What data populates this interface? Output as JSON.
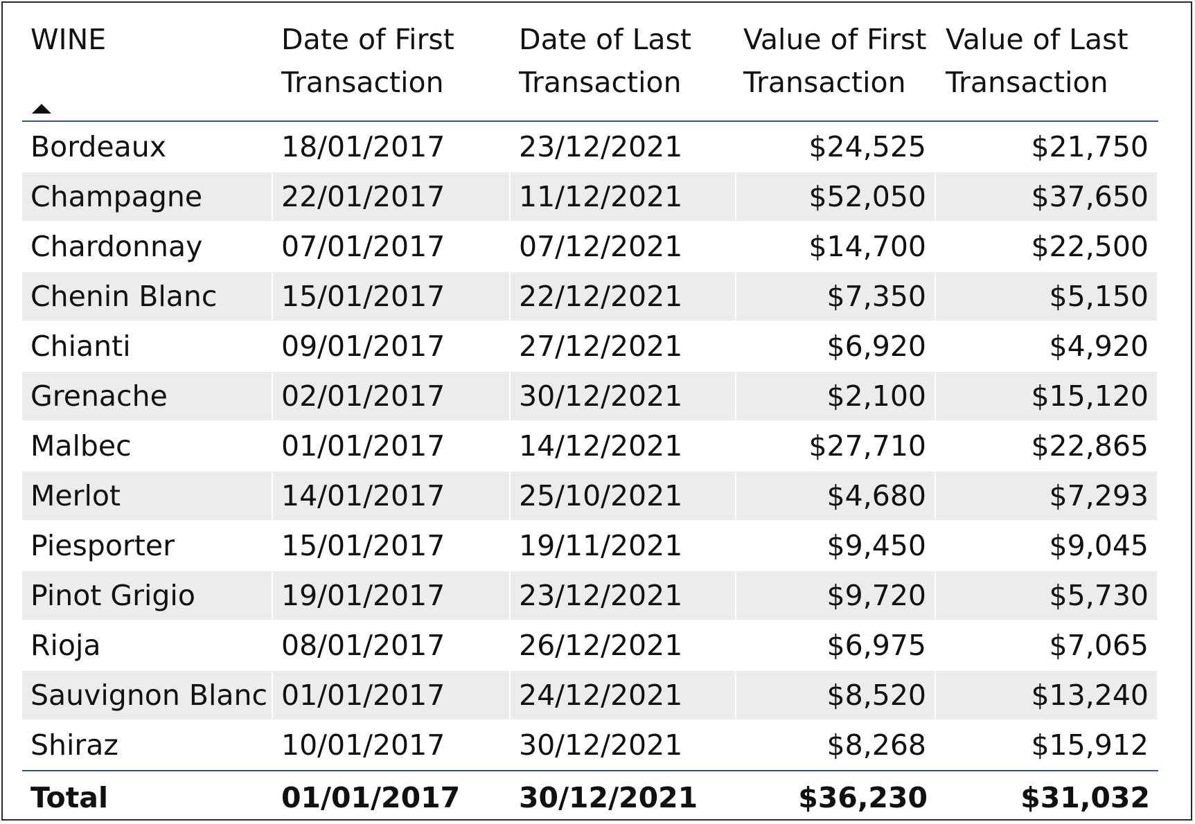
{
  "table": {
    "headers": {
      "wine": "WINE",
      "date_first_1": "Date of First",
      "date_first_2": "Transaction",
      "date_last_1": "Date of Last",
      "date_last_2": "Transaction",
      "value_first_1": "Value of First",
      "value_first_2": "Transaction",
      "value_last_1": "Value of Last",
      "value_last_2": "Transaction"
    },
    "sort": {
      "column": "WINE",
      "direction": "ascending"
    },
    "rows": [
      {
        "wine": "Bordeaux",
        "date_first": "18/01/2017",
        "date_last": "23/12/2021",
        "value_first": "$24,525",
        "value_last": "$21,750"
      },
      {
        "wine": "Champagne",
        "date_first": "22/01/2017",
        "date_last": "11/12/2021",
        "value_first": "$52,050",
        "value_last": "$37,650"
      },
      {
        "wine": "Chardonnay",
        "date_first": "07/01/2017",
        "date_last": "07/12/2021",
        "value_first": "$14,700",
        "value_last": "$22,500"
      },
      {
        "wine": "Chenin Blanc",
        "date_first": "15/01/2017",
        "date_last": "22/12/2021",
        "value_first": "$7,350",
        "value_last": "$5,150"
      },
      {
        "wine": "Chianti",
        "date_first": "09/01/2017",
        "date_last": "27/12/2021",
        "value_first": "$6,920",
        "value_last": "$4,920"
      },
      {
        "wine": "Grenache",
        "date_first": "02/01/2017",
        "date_last": "30/12/2021",
        "value_first": "$2,100",
        "value_last": "$15,120"
      },
      {
        "wine": "Malbec",
        "date_first": "01/01/2017",
        "date_last": "14/12/2021",
        "value_first": "$27,710",
        "value_last": "$22,865"
      },
      {
        "wine": "Merlot",
        "date_first": "14/01/2017",
        "date_last": "25/10/2021",
        "value_first": "$4,680",
        "value_last": "$7,293"
      },
      {
        "wine": "Piesporter",
        "date_first": "15/01/2017",
        "date_last": "19/11/2021",
        "value_first": "$9,450",
        "value_last": "$9,045"
      },
      {
        "wine": "Pinot Grigio",
        "date_first": "19/01/2017",
        "date_last": "23/12/2021",
        "value_first": "$9,720",
        "value_last": "$5,730"
      },
      {
        "wine": "Rioja",
        "date_first": "08/01/2017",
        "date_last": "26/12/2021",
        "value_first": "$6,975",
        "value_last": "$7,065"
      },
      {
        "wine": "Sauvignon Blanc",
        "date_first": "01/01/2017",
        "date_last": "24/12/2021",
        "value_first": "$8,520",
        "value_last": "$13,240"
      },
      {
        "wine": "Shiraz",
        "date_first": "10/01/2017",
        "date_last": "30/12/2021",
        "value_first": "$8,268",
        "value_last": "$15,912"
      }
    ],
    "total": {
      "label": "Total",
      "date_first": "01/01/2017",
      "date_last": "30/12/2021",
      "value_first": "$36,230",
      "value_last": "$31,032"
    }
  },
  "colors": {
    "header_rule": "#2f4f9e",
    "row_band": "#ececec",
    "frame_border": "#2b2b2b"
  },
  "icons": {
    "sort": "sort-ascending-icon"
  }
}
